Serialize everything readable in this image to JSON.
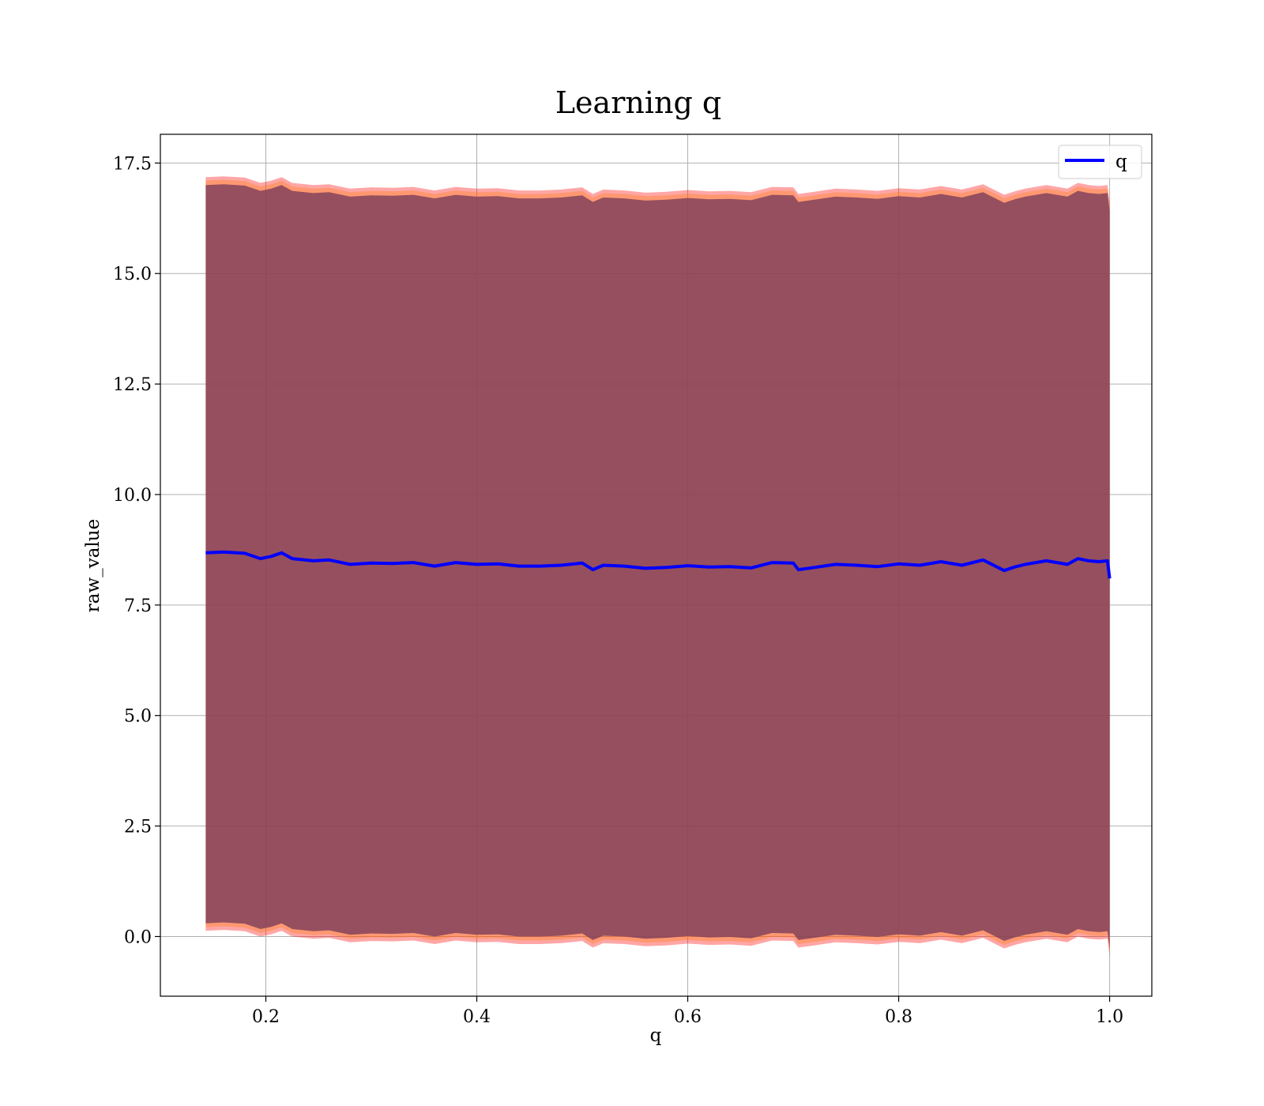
{
  "chart_data": {
    "type": "line",
    "title": "Learning q",
    "xlabel": "q",
    "ylabel": "raw_value",
    "xlim": [
      0.1,
      1.04
    ],
    "ylim": [
      -1.35,
      18.15
    ],
    "xticks": [
      0.2,
      0.4,
      0.6,
      0.8,
      1.0
    ],
    "xtick_labels": [
      "0.2",
      "0.4",
      "0.6",
      "0.8",
      "1.0"
    ],
    "yticks": [
      0.0,
      2.5,
      5.0,
      7.5,
      10.0,
      12.5,
      15.0,
      17.5
    ],
    "ytick_labels": [
      "0.0",
      "2.5",
      "5.0",
      "7.5",
      "10.0",
      "12.5",
      "15.0",
      "17.5"
    ],
    "grid": true,
    "legend": {
      "placement": "top-right",
      "entries": [
        "q"
      ]
    },
    "series": [
      {
        "name": "q",
        "color": "#0000ff",
        "x": [
          0.143,
          0.16,
          0.18,
          0.195,
          0.205,
          0.215,
          0.225,
          0.245,
          0.26,
          0.28,
          0.3,
          0.32,
          0.34,
          0.36,
          0.38,
          0.4,
          0.42,
          0.44,
          0.46,
          0.48,
          0.5,
          0.51,
          0.52,
          0.54,
          0.56,
          0.58,
          0.6,
          0.62,
          0.64,
          0.66,
          0.68,
          0.7,
          0.705,
          0.72,
          0.74,
          0.76,
          0.78,
          0.8,
          0.82,
          0.84,
          0.86,
          0.88,
          0.9,
          0.91,
          0.92,
          0.94,
          0.96,
          0.97,
          0.98,
          0.99,
          0.998,
          1.0
        ],
        "y": [
          8.68,
          8.7,
          8.67,
          8.55,
          8.6,
          8.68,
          8.55,
          8.5,
          8.52,
          8.42,
          8.45,
          8.44,
          8.46,
          8.38,
          8.46,
          8.42,
          8.43,
          8.38,
          8.38,
          8.4,
          8.45,
          8.3,
          8.4,
          8.38,
          8.33,
          8.35,
          8.39,
          8.36,
          8.37,
          8.34,
          8.46,
          8.45,
          8.3,
          8.35,
          8.42,
          8.4,
          8.37,
          8.43,
          8.4,
          8.48,
          8.4,
          8.52,
          8.28,
          8.36,
          8.42,
          8.5,
          8.42,
          8.55,
          8.5,
          8.48,
          8.5,
          8.1
        ]
      }
    ],
    "bands": [
      {
        "color": "#ff0000",
        "alpha": 0.35,
        "upper_offset": 8.5,
        "lower_offset": -8.55
      },
      {
        "color": "#ff7f0e",
        "alpha": 0.35,
        "upper_offset": 8.42,
        "lower_offset": -8.47
      },
      {
        "color": "#7f3f5a",
        "alpha": 0.82,
        "upper_offset": 8.32,
        "lower_offset": -8.38
      }
    ]
  }
}
